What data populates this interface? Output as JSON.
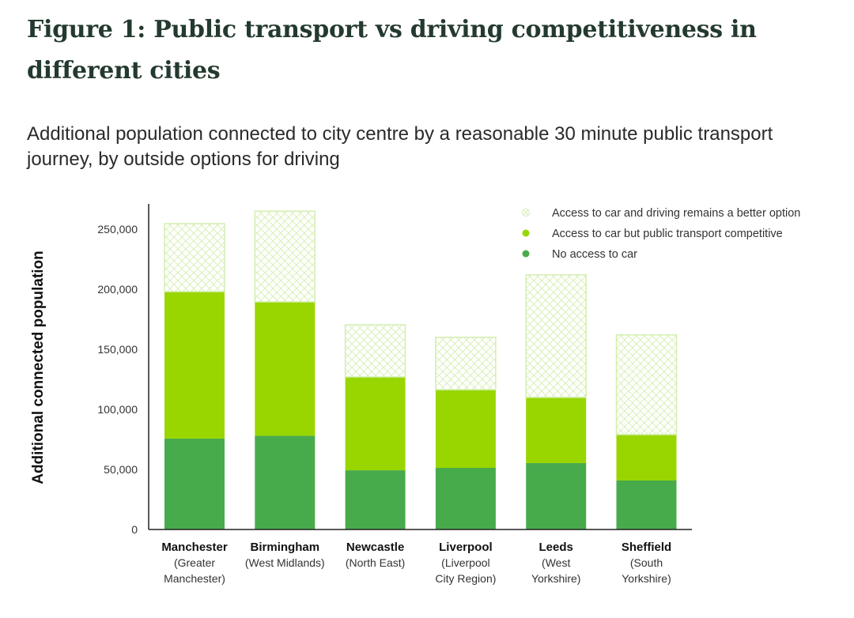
{
  "header": {
    "title": "Figure 1: Public transport vs driving competitiveness in different cities",
    "subtitle": "Additional population connected to city centre by a reasonable 30 minute public transport journey, by outside options for driving"
  },
  "colors": {
    "no_car": "#48ab4b",
    "pt_competitive": "#99d600",
    "driving_better_stroke": "#d4eeb0",
    "axis": "#222222"
  },
  "chart_data": {
    "type": "bar",
    "stacked": true,
    "title": "Figure 1: Public transport vs driving competitiveness in different cities",
    "subtitle": "Additional population connected to city centre by a reasonable 30 minute public transport journey, by outside options for driving",
    "xlabel": "",
    "ylabel": "Additional connected population",
    "ylim": [
      0,
      270000
    ],
    "yticks": [
      0,
      50000,
      100000,
      150000,
      200000,
      250000
    ],
    "ytick_labels": [
      "0",
      "50,000",
      "100,000",
      "150,000",
      "200,000",
      "250,000"
    ],
    "grid": false,
    "legend_position": "top-right",
    "categories": [
      {
        "name": "Manchester",
        "sub": [
          "(Greater",
          "Manchester)"
        ]
      },
      {
        "name": "Birmingham",
        "sub": [
          "(West Midlands)"
        ]
      },
      {
        "name": "Newcastle",
        "sub": [
          "(North East)"
        ]
      },
      {
        "name": "Liverpool",
        "sub": [
          "(Liverpool",
          "City Region)"
        ]
      },
      {
        "name": "Leeds",
        "sub": [
          "(West",
          "Yorkshire)"
        ]
      },
      {
        "name": "Sheffield",
        "sub": [
          "(South",
          "Yorkshire)"
        ]
      }
    ],
    "series": [
      {
        "name": "No access to car",
        "style": "solid-dark",
        "values": [
          75700,
          78000,
          49300,
          51300,
          55300,
          40800
        ]
      },
      {
        "name": "Access to car but public transport competitive",
        "style": "solid-light",
        "values": [
          122300,
          111500,
          77700,
          65100,
          54700,
          38200
        ]
      },
      {
        "name": "Access to car and driving remains a better option",
        "style": "hatched",
        "values": [
          56600,
          75500,
          43400,
          43600,
          102000,
          83000
        ]
      }
    ],
    "legend": [
      "Access to car and driving remains a better option",
      "Access to car but public transport competitive",
      "No access to car"
    ]
  }
}
